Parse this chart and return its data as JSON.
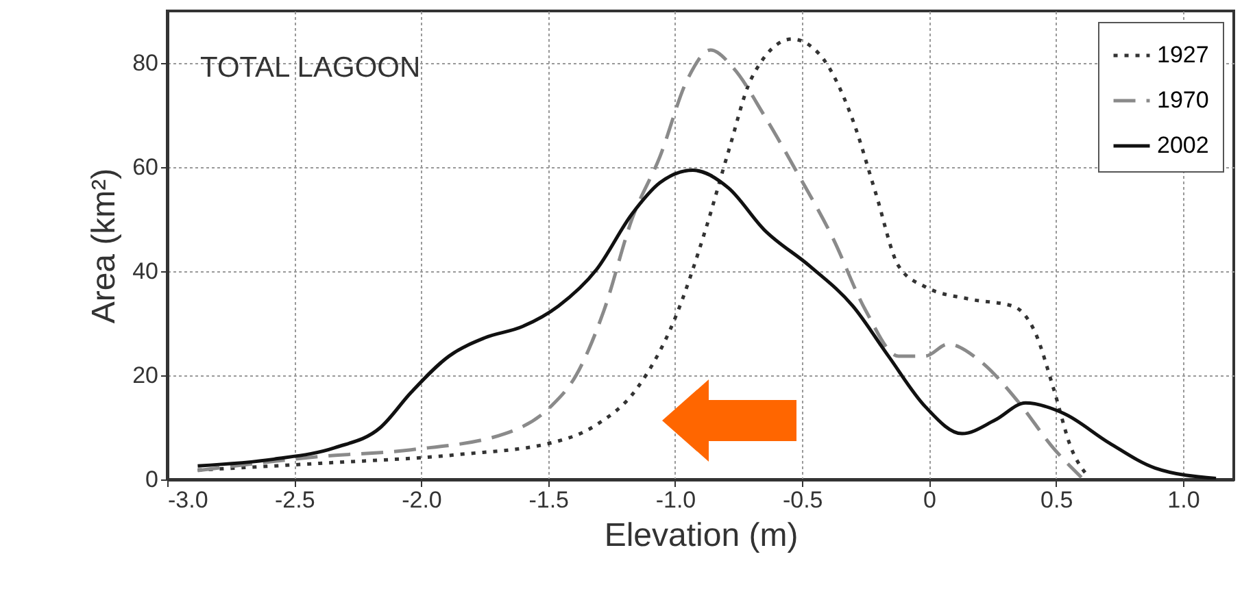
{
  "chart_data": {
    "type": "line",
    "xlabel": "Elevation (m)",
    "ylabel": "Area (km²)",
    "annotations": [
      "TOTAL LAGOON"
    ],
    "xlim": [
      -3.0,
      1.2
    ],
    "ylim": [
      0,
      90
    ],
    "xticks": [
      {
        "value": -3,
        "label": "-3.0"
      },
      {
        "value": -2.5,
        "label": "-2.5"
      },
      {
        "value": -2,
        "label": "-2.0"
      },
      {
        "value": -1.5,
        "label": "-1.5"
      },
      {
        "value": -1,
        "label": "-1.0"
      },
      {
        "value": -0.5,
        "label": "-0.5"
      },
      0,
      0.5,
      {
        "value": 1,
        "label": "1.0"
      }
    ],
    "yticks": [
      0,
      20,
      40,
      60,
      80
    ],
    "grid": true,
    "legend": "top right",
    "series": [
      {
        "name": "1927",
        "color": "#333333",
        "line_style": "dotted",
        "x": [
          -2.88,
          -2.4,
          -1.85,
          -1.49,
          -1.31,
          -1.15,
          -1.0,
          -0.88,
          -0.79,
          -0.7,
          -0.54,
          -0.43,
          -0.3,
          -0.21,
          -0.12,
          -0.015,
          0.165,
          0.33,
          0.42,
          0.49,
          0.56,
          0.63
        ],
        "values": [
          1.8,
          3.1,
          4.8,
          7,
          10.5,
          17.5,
          31,
          48,
          63,
          77,
          84.6,
          81.6,
          69,
          55,
          41,
          37,
          34.6,
          33.3,
          28,
          17.5,
          6,
          0.4
        ]
      },
      {
        "name": "1970",
        "color": "#8a8a8a",
        "line_style": "dashed",
        "x": [
          -2.88,
          -2.4,
          -2.04,
          -1.67,
          -1.49,
          -1.39,
          -1.28,
          -1.17,
          -1.06,
          -0.95,
          -0.86,
          -0.77,
          -0.65,
          -0.52,
          -0.38,
          -0.25,
          -0.12,
          -0.015,
          0.075,
          0.2,
          0.35,
          0.49,
          0.6
        ],
        "values": [
          1.7,
          4.4,
          5.7,
          8.8,
          14,
          20,
          32.5,
          50,
          62,
          77,
          82.5,
          79,
          70,
          59,
          46.5,
          32.5,
          23.7,
          23.7,
          26,
          22.8,
          15,
          6,
          0.4
        ]
      },
      {
        "name": "2002",
        "color": "#111111",
        "line_style": "solid",
        "x": [
          -2.88,
          -2.58,
          -2.34,
          -2.16,
          -2.04,
          -1.89,
          -1.75,
          -1.6,
          -1.46,
          -1.31,
          -1.17,
          -1.06,
          -0.93,
          -0.79,
          -0.65,
          -0.47,
          -0.3,
          -0.16,
          -0.015,
          0.13,
          0.26,
          0.38,
          0.53,
          0.71,
          0.89,
          1.13
        ],
        "values": [
          2.6,
          3.9,
          6.1,
          10,
          16.7,
          23.7,
          27.2,
          29.4,
          33.3,
          40.3,
          51,
          57,
          59.4,
          56,
          48,
          41,
          33.3,
          23.7,
          14,
          8.8,
          11.4,
          14.7,
          12.7,
          7,
          2.2,
          0.2
        ]
      }
    ]
  }
}
